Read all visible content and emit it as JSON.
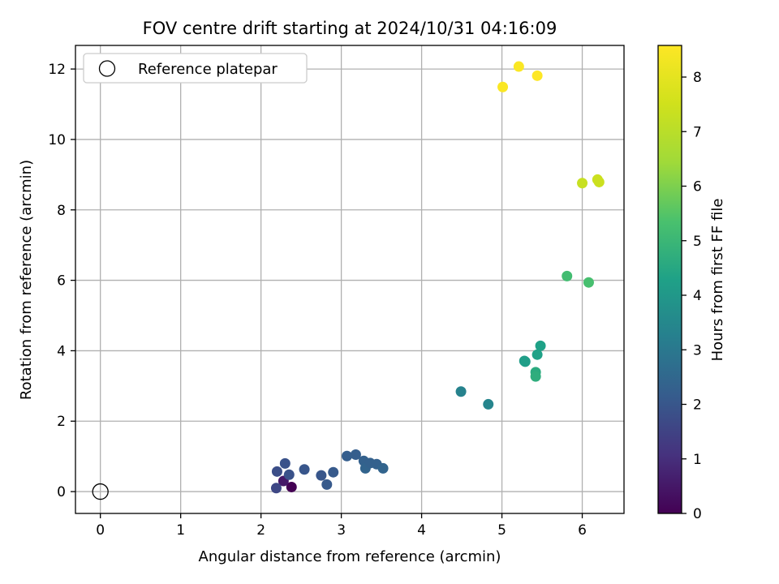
{
  "chart_data": {
    "type": "scatter",
    "title": "FOV centre drift starting at 2024/10/31 04:16:09",
    "xlabel": "Angular distance from reference (arcmin)",
    "ylabel": "Rotation from reference (arcmin)",
    "xlim": [
      -0.31,
      6.52
    ],
    "ylim": [
      -0.62,
      12.67
    ],
    "xticks": [
      "0",
      "1",
      "2",
      "3",
      "4",
      "5",
      "6"
    ],
    "yticks": [
      "0",
      "2",
      "4",
      "6",
      "8",
      "10",
      "12"
    ],
    "grid": true,
    "legend": {
      "placement": "top-left",
      "entries": [
        "Reference platepar"
      ]
    },
    "reference_point": {
      "x": 0,
      "y": 0
    },
    "colorbar": {
      "label": "Hours from first FF file",
      "range": [
        0,
        8.58
      ],
      "ticks": [
        "0",
        "1",
        "2",
        "3",
        "4",
        "5",
        "6",
        "7",
        "8"
      ],
      "colormap": "viridis"
    },
    "points": [
      {
        "x": 2.38,
        "y": 0.13,
        "hours": 0.0
      },
      {
        "x": 2.28,
        "y": 0.3,
        "hours": 0.5
      },
      {
        "x": 2.19,
        "y": 0.1,
        "hours": 1.6
      },
      {
        "x": 2.2,
        "y": 0.57,
        "hours": 1.8
      },
      {
        "x": 2.3,
        "y": 0.8,
        "hours": 1.9
      },
      {
        "x": 2.35,
        "y": 0.48,
        "hours": 1.9
      },
      {
        "x": 2.54,
        "y": 0.63,
        "hours": 2.0
      },
      {
        "x": 2.75,
        "y": 0.46,
        "hours": 2.0
      },
      {
        "x": 2.82,
        "y": 0.2,
        "hours": 2.1
      },
      {
        "x": 2.9,
        "y": 0.55,
        "hours": 2.1
      },
      {
        "x": 3.07,
        "y": 1.01,
        "hours": 2.2
      },
      {
        "x": 3.18,
        "y": 1.05,
        "hours": 2.2
      },
      {
        "x": 3.28,
        "y": 0.87,
        "hours": 2.3
      },
      {
        "x": 3.3,
        "y": 0.66,
        "hours": 2.4
      },
      {
        "x": 3.36,
        "y": 0.81,
        "hours": 2.3
      },
      {
        "x": 3.44,
        "y": 0.78,
        "hours": 2.3
      },
      {
        "x": 3.52,
        "y": 0.66,
        "hours": 2.4
      },
      {
        "x": 4.49,
        "y": 2.84,
        "hours": 3.3
      },
      {
        "x": 4.83,
        "y": 2.48,
        "hours": 3.4
      },
      {
        "x": 5.28,
        "y": 3.71,
        "hours": 4.2
      },
      {
        "x": 5.29,
        "y": 3.69,
        "hours": 4.2
      },
      {
        "x": 5.44,
        "y": 3.89,
        "hours": 4.3
      },
      {
        "x": 5.48,
        "y": 4.14,
        "hours": 4.3
      },
      {
        "x": 5.42,
        "y": 3.39,
        "hours": 4.6
      },
      {
        "x": 5.42,
        "y": 3.27,
        "hours": 4.7
      },
      {
        "x": 5.81,
        "y": 6.12,
        "hours": 5.2
      },
      {
        "x": 6.08,
        "y": 5.94,
        "hours": 5.3
      },
      {
        "x": 6.0,
        "y": 8.76,
        "hours": 7.3
      },
      {
        "x": 6.19,
        "y": 8.86,
        "hours": 7.4
      },
      {
        "x": 6.21,
        "y": 8.79,
        "hours": 7.4
      },
      {
        "x": 5.01,
        "y": 11.49,
        "hours": 8.5
      },
      {
        "x": 5.21,
        "y": 12.07,
        "hours": 8.5
      },
      {
        "x": 5.44,
        "y": 11.81,
        "hours": 8.6
      }
    ]
  }
}
